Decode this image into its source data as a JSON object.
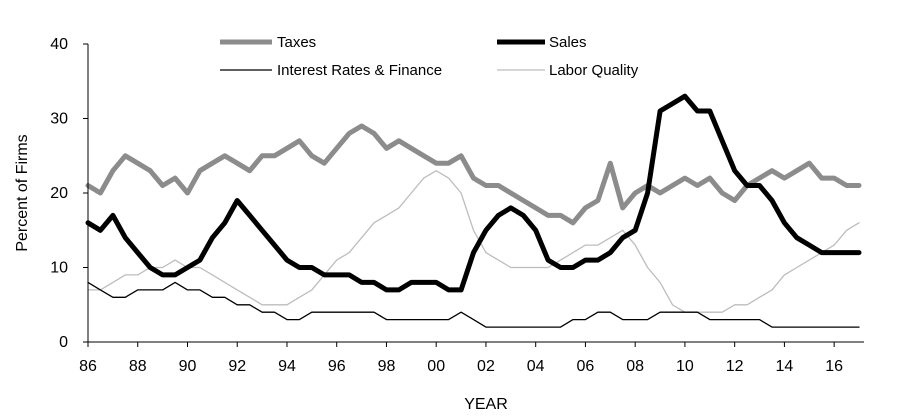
{
  "chart_data": {
    "type": "line",
    "title": "",
    "xlabel": "YEAR",
    "ylabel": "Percent of Firms",
    "xlim": [
      1986,
      2017.2
    ],
    "ylim": [
      0,
      40
    ],
    "yticks": [
      0,
      10,
      20,
      30,
      40
    ],
    "xtick_values": [
      1986,
      1988,
      1990,
      1992,
      1994,
      1996,
      1998,
      2000,
      2002,
      2004,
      2006,
      2008,
      2010,
      2012,
      2014,
      2016
    ],
    "xtick_labels": [
      "86",
      "88",
      "90",
      "92",
      "94",
      "96",
      "98",
      "00",
      "02",
      "04",
      "06",
      "08",
      "10",
      "12",
      "14",
      "16"
    ],
    "grid": false,
    "legend_position": "top",
    "series": [
      {
        "name": "Taxes",
        "color": "#8c8c8c",
        "style": "thick",
        "x": [
          1986.0,
          1986.5,
          1987.0,
          1987.5,
          1988.0,
          1988.5,
          1989.0,
          1989.5,
          1990.0,
          1990.5,
          1991.0,
          1991.5,
          1992.0,
          1992.5,
          1993.0,
          1993.5,
          1994.0,
          1994.5,
          1995.0,
          1995.5,
          1996.0,
          1996.5,
          1997.0,
          1997.5,
          1998.0,
          1998.5,
          1999.0,
          1999.5,
          2000.0,
          2000.5,
          2001.0,
          2001.5,
          2002.0,
          2002.5,
          2003.0,
          2003.5,
          2004.0,
          2004.5,
          2005.0,
          2005.5,
          2006.0,
          2006.5,
          2007.0,
          2007.5,
          2008.0,
          2008.5,
          2009.0,
          2009.5,
          2010.0,
          2010.5,
          2011.0,
          2011.5,
          2012.0,
          2012.5,
          2013.0,
          2013.5,
          2014.0,
          2014.5,
          2015.0,
          2015.5,
          2016.0,
          2016.5,
          2017.0
        ],
        "y": [
          21,
          20,
          23,
          25,
          24,
          23,
          21,
          22,
          20,
          23,
          24,
          25,
          24,
          23,
          25,
          25,
          26,
          27,
          25,
          24,
          26,
          28,
          29,
          28,
          26,
          27,
          26,
          25,
          24,
          24,
          25,
          22,
          21,
          21,
          20,
          19,
          18,
          17,
          17,
          16,
          18,
          19,
          24,
          18,
          20,
          21,
          20,
          21,
          22,
          21,
          22,
          20,
          19,
          21,
          22,
          23,
          22,
          23,
          24,
          22,
          22,
          21,
          21
        ]
      },
      {
        "name": "Sales",
        "color": "#000000",
        "style": "thick",
        "x": [
          1986.0,
          1986.5,
          1987.0,
          1987.5,
          1988.0,
          1988.5,
          1989.0,
          1989.5,
          1990.0,
          1990.5,
          1991.0,
          1991.5,
          1992.0,
          1992.5,
          1993.0,
          1993.5,
          1994.0,
          1994.5,
          1995.0,
          1995.5,
          1996.0,
          1996.5,
          1997.0,
          1997.5,
          1998.0,
          1998.5,
          1999.0,
          1999.5,
          2000.0,
          2000.5,
          2001.0,
          2001.5,
          2002.0,
          2002.5,
          2003.0,
          2003.5,
          2004.0,
          2004.5,
          2005.0,
          2005.5,
          2006.0,
          2006.5,
          2007.0,
          2007.5,
          2008.0,
          2008.5,
          2009.0,
          2009.5,
          2010.0,
          2010.5,
          2011.0,
          2011.5,
          2012.0,
          2012.5,
          2013.0,
          2013.5,
          2014.0,
          2014.5,
          2015.0,
          2015.5,
          2016.0,
          2016.5,
          2017.0
        ],
        "y": [
          16,
          15,
          17,
          14,
          12,
          10,
          9,
          9,
          10,
          11,
          14,
          16,
          19,
          17,
          15,
          13,
          11,
          10,
          10,
          9,
          9,
          9,
          8,
          8,
          7,
          7,
          8,
          8,
          8,
          7,
          7,
          12,
          15,
          17,
          18,
          17,
          15,
          11,
          10,
          10,
          11,
          11,
          12,
          14,
          15,
          20,
          31,
          32,
          33,
          31,
          31,
          27,
          23,
          21,
          21,
          19,
          16,
          14,
          13,
          12,
          12,
          12,
          12
        ]
      },
      {
        "name": "Interest Rates & Finance",
        "color": "#000000",
        "style": "thin",
        "x": [
          1986.0,
          1986.5,
          1987.0,
          1987.5,
          1988.0,
          1988.5,
          1989.0,
          1989.5,
          1990.0,
          1990.5,
          1991.0,
          1991.5,
          1992.0,
          1992.5,
          1993.0,
          1993.5,
          1994.0,
          1994.5,
          1995.0,
          1995.5,
          1996.0,
          1996.5,
          1997.0,
          1997.5,
          1998.0,
          1998.5,
          1999.0,
          1999.5,
          2000.0,
          2000.5,
          2001.0,
          2001.5,
          2002.0,
          2002.5,
          2003.0,
          2003.5,
          2004.0,
          2004.5,
          2005.0,
          2005.5,
          2006.0,
          2006.5,
          2007.0,
          2007.5,
          2008.0,
          2008.5,
          2009.0,
          2009.5,
          2010.0,
          2010.5,
          2011.0,
          2011.5,
          2012.0,
          2012.5,
          2013.0,
          2013.5,
          2014.0,
          2014.5,
          2015.0,
          2015.5,
          2016.0,
          2016.5,
          2017.0
        ],
        "y": [
          8,
          7,
          6,
          6,
          7,
          7,
          7,
          8,
          7,
          7,
          6,
          6,
          5,
          5,
          4,
          4,
          3,
          3,
          4,
          4,
          4,
          4,
          4,
          4,
          3,
          3,
          3,
          3,
          3,
          3,
          4,
          3,
          2,
          2,
          2,
          2,
          2,
          2,
          2,
          3,
          3,
          4,
          4,
          3,
          3,
          3,
          4,
          4,
          4,
          4,
          3,
          3,
          3,
          3,
          3,
          2,
          2,
          2,
          2,
          2,
          2,
          2,
          2
        ]
      },
      {
        "name": "Labor Quality",
        "color": "#bdbdbd",
        "style": "thin",
        "x": [
          1986.0,
          1986.5,
          1987.0,
          1987.5,
          1988.0,
          1988.5,
          1989.0,
          1989.5,
          1990.0,
          1990.5,
          1991.0,
          1991.5,
          1992.0,
          1992.5,
          1993.0,
          1993.5,
          1994.0,
          1994.5,
          1995.0,
          1995.5,
          1996.0,
          1996.5,
          1997.0,
          1997.5,
          1998.0,
          1998.5,
          1999.0,
          1999.5,
          2000.0,
          2000.5,
          2001.0,
          2001.5,
          2002.0,
          2002.5,
          2003.0,
          2003.5,
          2004.0,
          2004.5,
          2005.0,
          2005.5,
          2006.0,
          2006.5,
          2007.0,
          2007.5,
          2008.0,
          2008.5,
          2009.0,
          2009.5,
          2010.0,
          2010.5,
          2011.0,
          2011.5,
          2012.0,
          2012.5,
          2013.0,
          2013.5,
          2014.0,
          2014.5,
          2015.0,
          2015.5,
          2016.0,
          2016.5,
          2017.0
        ],
        "y": [
          7,
          7,
          8,
          9,
          9,
          10,
          10,
          11,
          10,
          10,
          9,
          8,
          7,
          6,
          5,
          5,
          5,
          6,
          7,
          9,
          11,
          12,
          14,
          16,
          17,
          18,
          20,
          22,
          23,
          22,
          20,
          15,
          12,
          11,
          10,
          10,
          10,
          10,
          11,
          12,
          13,
          13,
          14,
          15,
          13,
          10,
          8,
          5,
          4,
          4,
          4,
          4,
          5,
          5,
          6,
          7,
          9,
          10,
          11,
          12,
          13,
          15,
          16
        ]
      }
    ]
  }
}
